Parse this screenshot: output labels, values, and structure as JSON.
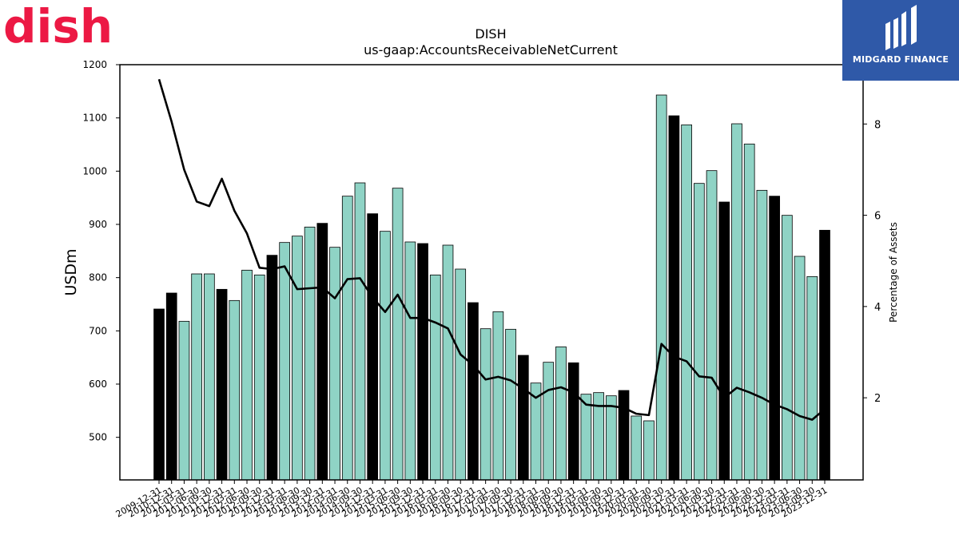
{
  "logos": {
    "left_brand": "dish",
    "left_brand_color": "#ec1944",
    "right_brand": "MIDGARD FINANCE",
    "right_brand_bg": "#2f59a8"
  },
  "chart_data": {
    "type": "bar",
    "title": "DISH",
    "subtitle": "us-gaap:AccountsReceivableNetCurrent",
    "ylabel": "USDm",
    "y2label": "Percentage of Assets",
    "ylim": [
      420,
      1200
    ],
    "y2lim": [
      0.2,
      9.3
    ],
    "yticks": [
      500,
      600,
      700,
      800,
      900,
      1000,
      1100,
      1200
    ],
    "y2ticks": [
      2,
      4,
      6,
      8
    ],
    "grid": false,
    "legend": "none",
    "colors": {
      "bar_quarter": "#8fd3c5",
      "bar_year_end": "#000000",
      "line": "#000000"
    },
    "categories": [
      "2009-12-31",
      "2010-12-31",
      "2011-03-31",
      "2011-06-30",
      "2011-09-30",
      "2011-12-31",
      "2012-03-31",
      "2012-06-30",
      "2012-09-30",
      "2012-12-31",
      "2013-03-31",
      "2013-06-30",
      "2013-09-30",
      "2013-12-31",
      "2014-03-31",
      "2014-06-30",
      "2014-09-30",
      "2014-12-31",
      "2015-03-31",
      "2015-06-30",
      "2015-09-30",
      "2015-12-31",
      "2016-03-31",
      "2016-06-30",
      "2016-09-30",
      "2016-12-31",
      "2017-03-31",
      "2017-06-30",
      "2017-09-30",
      "2017-12-31",
      "2018-03-31",
      "2018-06-30",
      "2018-09-30",
      "2018-12-31",
      "2019-03-31",
      "2019-06-30",
      "2019-09-30",
      "2019-12-31",
      "2020-03-31",
      "2020-06-30",
      "2020-09-30",
      "2020-12-31",
      "2021-03-31",
      "2021-06-30",
      "2021-09-30",
      "2021-12-31",
      "2022-03-31",
      "2022-06-30",
      "2022-09-30",
      "2022-12-31",
      "2023-03-31",
      "2023-06-30",
      "2023-09-30",
      "2023-12-31"
    ],
    "tick_labels": [
      "2009-12-31",
      "2010-12-31",
      "2011-03-31",
      "2011-06-30",
      "2011-09-30",
      "2011-12-31",
      "2012-03-31",
      "2012-06-30",
      "2012-09-30",
      "2012-12-31",
      "2013-03-31",
      "2013-06-30",
      "2013-09-30",
      "2013-12-31",
      "2014-03-31",
      "2014-06-30",
      "2014-09-30",
      "2014-12-31",
      "2015-03-31",
      "2015-06-30",
      "2015-09-30",
      "2015-12-31",
      "2016-03-31",
      "2016-06-30",
      "2016-09-30",
      "2016-12-31",
      "2017-03-31",
      "2017-06-30",
      "2017-09-30",
      "2017-12-31",
      "2018-03-31",
      "2018-06-30",
      "2018-09-30",
      "2018-12-31",
      "2019-03-31",
      "2019-06-30",
      "2019-09-30",
      "2019-12-31",
      "2020-03-31",
      "2020-06-30",
      "2020-09-30",
      "2020-12-31",
      "2021-03-31",
      "2021-06-30",
      "2021-09-30",
      "2021-12-31",
      "2022-03-31",
      "2022-06-30",
      "2022-09-30",
      "2022-12-31",
      "2023-03-31",
      "2023-06-30",
      "2023-09-30",
      "2023-12-31"
    ],
    "year_end": [
      true,
      true,
      false,
      false,
      false,
      true,
      false,
      false,
      false,
      true,
      false,
      false,
      false,
      true,
      false,
      false,
      false,
      true,
      false,
      false,
      false,
      true,
      false,
      false,
      false,
      true,
      false,
      false,
      false,
      true,
      false,
      false,
      false,
      true,
      false,
      false,
      false,
      true,
      false,
      false,
      false,
      true,
      false,
      false,
      false,
      true,
      false,
      false,
      false,
      true,
      false,
      false,
      false,
      true
    ],
    "series": [
      {
        "axis": "left",
        "type": "bar",
        "values": [
          741,
          771,
          718,
          807,
          807,
          778,
          757,
          814,
          805,
          842,
          866,
          878,
          895,
          902,
          857,
          953,
          978,
          920,
          887,
          968,
          867,
          864,
          805,
          861,
          816,
          753,
          704,
          736,
          703,
          654,
          602,
          641,
          670,
          640,
          581,
          584,
          578,
          588,
          540,
          531,
          1143,
          1104,
          1087,
          977,
          1001,
          942,
          1089,
          1051,
          964,
          953,
          917,
          840,
          802,
          889
        ]
      },
      {
        "axis": "right",
        "type": "line",
        "values": [
          8.98,
          8.05,
          7.0,
          6.3,
          6.2,
          6.8,
          6.1,
          5.6,
          4.85,
          4.82,
          4.88,
          4.38,
          4.4,
          4.42,
          4.18,
          4.6,
          4.62,
          4.2,
          3.88,
          4.26,
          3.75,
          3.75,
          3.65,
          3.52,
          2.95,
          2.72,
          2.4,
          2.46,
          2.38,
          2.2,
          2.0,
          2.17,
          2.23,
          2.12,
          1.85,
          1.82,
          1.82,
          1.78,
          1.65,
          1.62,
          3.18,
          2.9,
          2.8,
          2.47,
          2.44,
          2.0,
          2.22,
          2.12,
          2.0,
          1.85,
          1.75,
          1.6,
          1.52,
          1.75
        ]
      }
    ]
  }
}
